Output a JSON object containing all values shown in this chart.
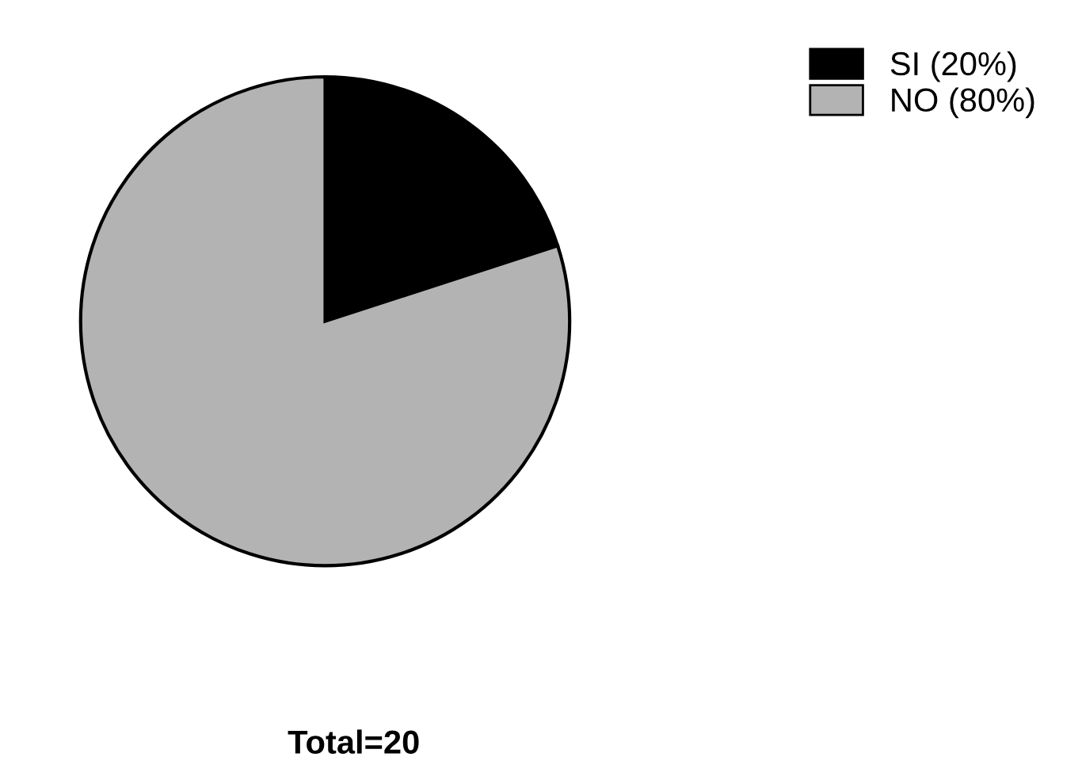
{
  "chart_data": {
    "type": "pie",
    "categories": [
      "SI (20%)",
      "NO (80%)"
    ],
    "values": [
      20,
      80
    ],
    "colors": [
      "#000000",
      "#b3b3b3"
    ],
    "legend": "top right",
    "annotations": [
      "Total=20"
    ]
  }
}
